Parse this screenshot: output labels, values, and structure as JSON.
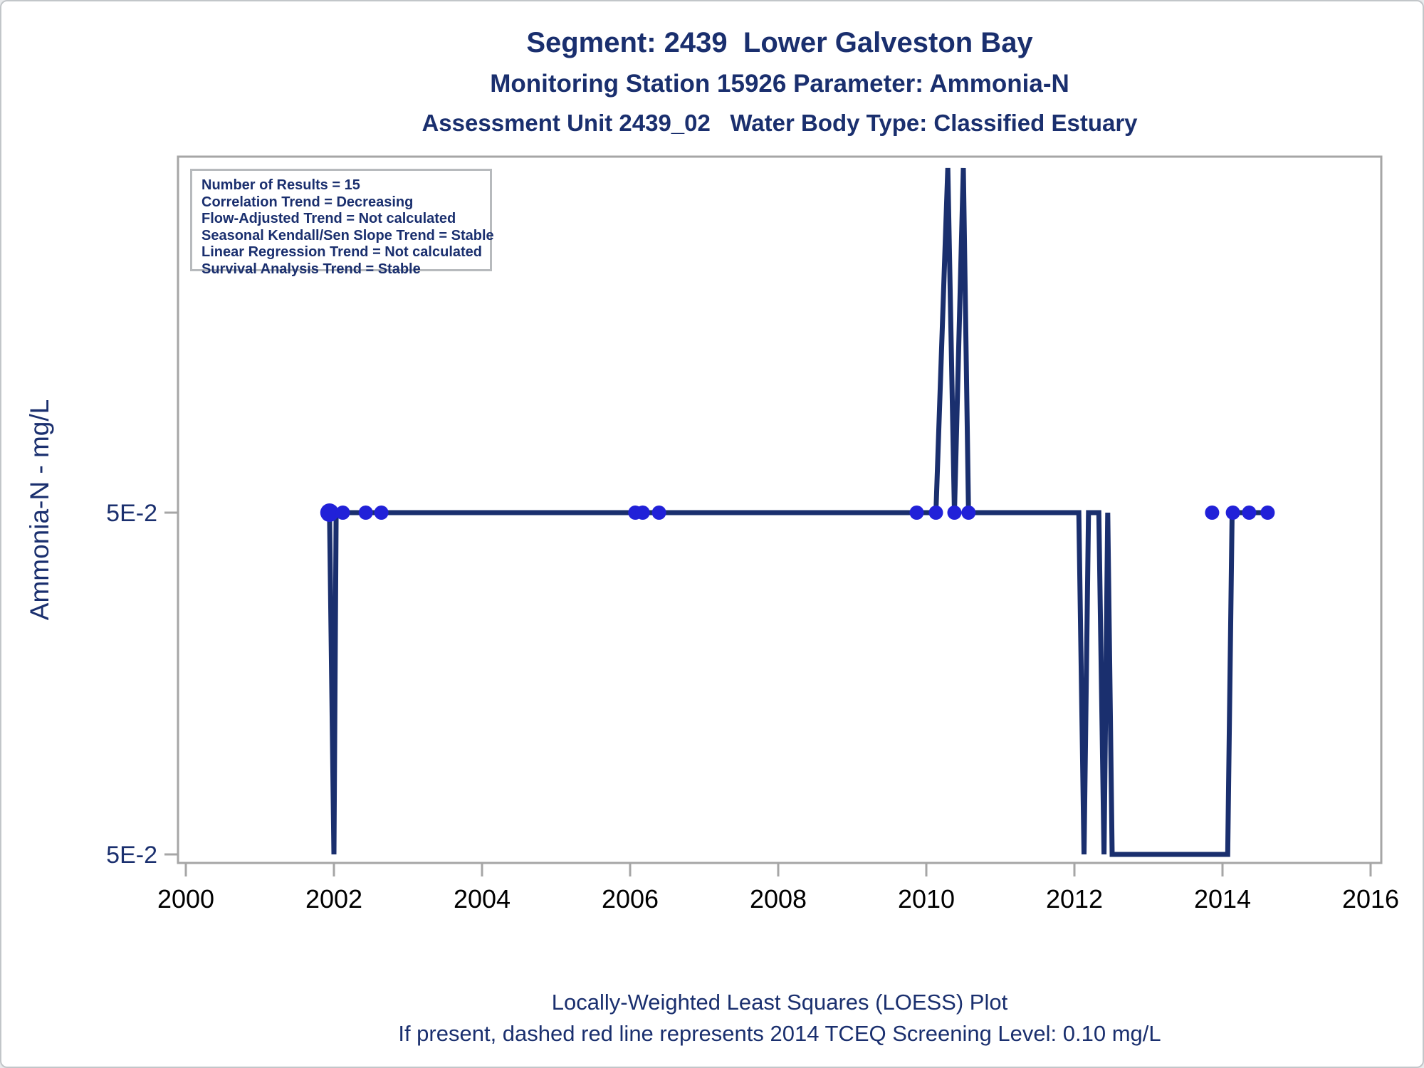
{
  "window": {
    "background": "#ffffff",
    "border_color": "#c2c6c9"
  },
  "header": {
    "title_line1": "Segment: 2439  Lower Galveston Bay",
    "title_line2": "Monitoring Station 15926 Parameter: Ammonia-N",
    "title_line3": "Assessment Unit 2439_02   Water Body Type: Classified Estuary"
  },
  "stats_box": {
    "lines": [
      "Number of Results = 15",
      "Correlation Trend = Decreasing",
      "Flow-Adjusted Trend = Not calculated",
      "Seasonal Kendall/Sen Slope Trend = Stable",
      "Linear Regression Trend = Not calculated",
      "Survival Analysis Trend = Stable"
    ]
  },
  "footer": {
    "line1": "Locally-Weighted Least Squares (LOESS) Plot",
    "line2": "If present, dashed red line represents 2014 TCEQ Screening Level: 0.10 mg/L"
  },
  "chart_data": {
    "type": "line",
    "title": "Segment: 2439 Lower Galveston Bay — Station 15926 — Ammonia-N",
    "xlabel": "",
    "ylabel": "Ammonia-N - mg/L",
    "units": "mg/L",
    "grid": false,
    "legend_position": "top-left-inside",
    "x_ticks": [
      2000,
      2002,
      2004,
      2006,
      2008,
      2010,
      2012,
      2014,
      2016
    ],
    "x_range": [
      1999.9,
      2016.15
    ],
    "y_tick_labels": [
      "5E-2",
      "5E-2"
    ],
    "level_meaning": {
      "hi": "upper 5E-2 tick (0.05 mg/L detected value)",
      "lo": "lower 5E-2 tick (censored / non-detect level)",
      "peak": "off-scale high value, clipped near top of plot"
    },
    "colors": {
      "line": "#1A2F6E",
      "marker": "#2121D8",
      "axis": "#A6A6A6",
      "label_navy": "#1A2F6E",
      "label_black": "#000000"
    },
    "marker_points": [
      {
        "x": 2001.94,
        "y": "5E-2"
      },
      {
        "x": 2002.12,
        "y": "5E-2"
      },
      {
        "x": 2002.43,
        "y": "5E-2"
      },
      {
        "x": 2002.64,
        "y": "5E-2"
      },
      {
        "x": 2006.07,
        "y": "5E-2"
      },
      {
        "x": 2006.17,
        "y": "5E-2"
      },
      {
        "x": 2006.39,
        "y": "5E-2"
      },
      {
        "x": 2009.87,
        "y": "5E-2"
      },
      {
        "x": 2010.13,
        "y": "5E-2"
      },
      {
        "x": 2010.38,
        "y": "5E-2"
      },
      {
        "x": 2010.57,
        "y": "5E-2"
      },
      {
        "x": 2013.86,
        "y": "5E-2"
      },
      {
        "x": 2014.14,
        "y": "5E-2"
      },
      {
        "x": 2014.36,
        "y": "5E-2"
      },
      {
        "x": 2014.61,
        "y": "5E-2"
      }
    ],
    "line_path": [
      {
        "x": 2001.94,
        "level": "hi"
      },
      {
        "x": 2002.0,
        "level": "lo"
      },
      {
        "x": 2002.03,
        "level": "hi"
      },
      {
        "x": 2002.12,
        "level": "hi"
      },
      {
        "x": 2002.43,
        "level": "hi"
      },
      {
        "x": 2002.64,
        "level": "hi"
      },
      {
        "x": 2006.07,
        "level": "hi"
      },
      {
        "x": 2006.17,
        "level": "hi"
      },
      {
        "x": 2006.39,
        "level": "hi"
      },
      {
        "x": 2009.87,
        "level": "hi"
      },
      {
        "x": 2010.13,
        "level": "hi"
      },
      {
        "x": 2010.29,
        "level": "peak"
      },
      {
        "x": 2010.38,
        "level": "hi"
      },
      {
        "x": 2010.5,
        "level": "peak"
      },
      {
        "x": 2010.57,
        "level": "hi"
      },
      {
        "x": 2012.06,
        "level": "hi"
      },
      {
        "x": 2012.13,
        "level": "lo"
      },
      {
        "x": 2012.19,
        "level": "hi"
      },
      {
        "x": 2012.33,
        "level": "hi"
      },
      {
        "x": 2012.4,
        "level": "lo"
      },
      {
        "x": 2012.45,
        "level": "hi"
      },
      {
        "x": 2012.51,
        "level": "lo"
      },
      {
        "x": 2014.07,
        "level": "lo"
      },
      {
        "x": 2014.13,
        "level": "hi"
      },
      {
        "x": 2014.36,
        "level": "hi"
      },
      {
        "x": 2014.61,
        "level": "hi"
      }
    ]
  }
}
